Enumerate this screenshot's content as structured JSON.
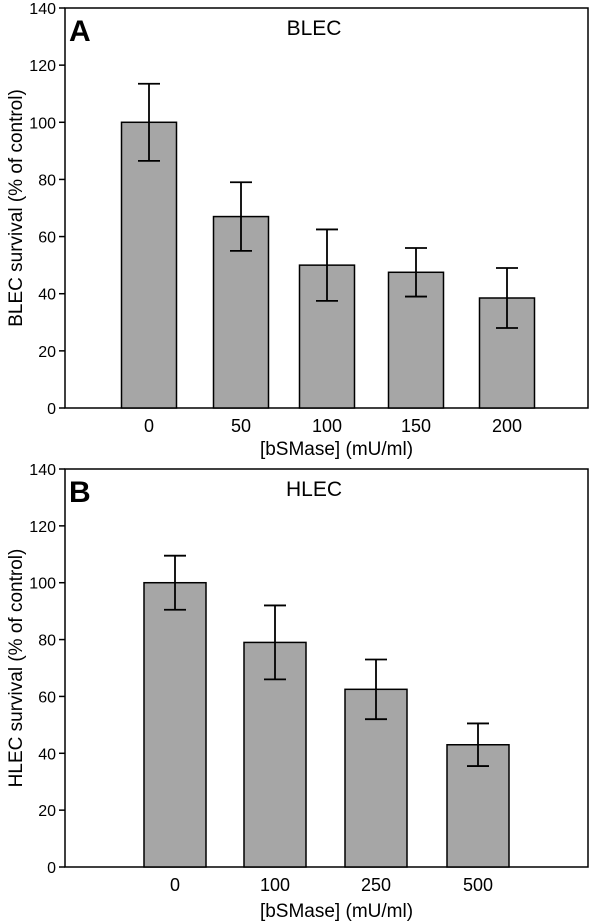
{
  "chart_data": [
    {
      "type": "bar",
      "panel_label": "A",
      "title": "BLEC",
      "xlabel": "[bSMase] (mU/ml)",
      "ylabel": "BLEC survival (% of control)",
      "ylim": [
        0,
        140
      ],
      "yticks": [
        "0",
        "20",
        "40",
        "60",
        "80",
        "100",
        "120",
        "140"
      ],
      "categories": [
        "0",
        "50",
        "100",
        "150",
        "200"
      ],
      "values": [
        100,
        67,
        50,
        47.5,
        38.5
      ],
      "errors": [
        13.5,
        12,
        12.5,
        8.5,
        10.5
      ],
      "bar_color": "#a6a6a6",
      "grid": false
    },
    {
      "type": "bar",
      "panel_label": "B",
      "title": "HLEC",
      "xlabel": "[bSMase] (mU/ml)",
      "ylabel": "HLEC survival (% of control)",
      "ylim": [
        0,
        140
      ],
      "yticks": [
        "0",
        "20",
        "40",
        "60",
        "80",
        "100",
        "120",
        "140"
      ],
      "categories": [
        "0",
        "100",
        "250",
        "500"
      ],
      "values": [
        100,
        79,
        62.5,
        43
      ],
      "errors": [
        9.5,
        13,
        10.5,
        7.5
      ],
      "bar_color": "#a6a6a6",
      "grid": false
    }
  ]
}
